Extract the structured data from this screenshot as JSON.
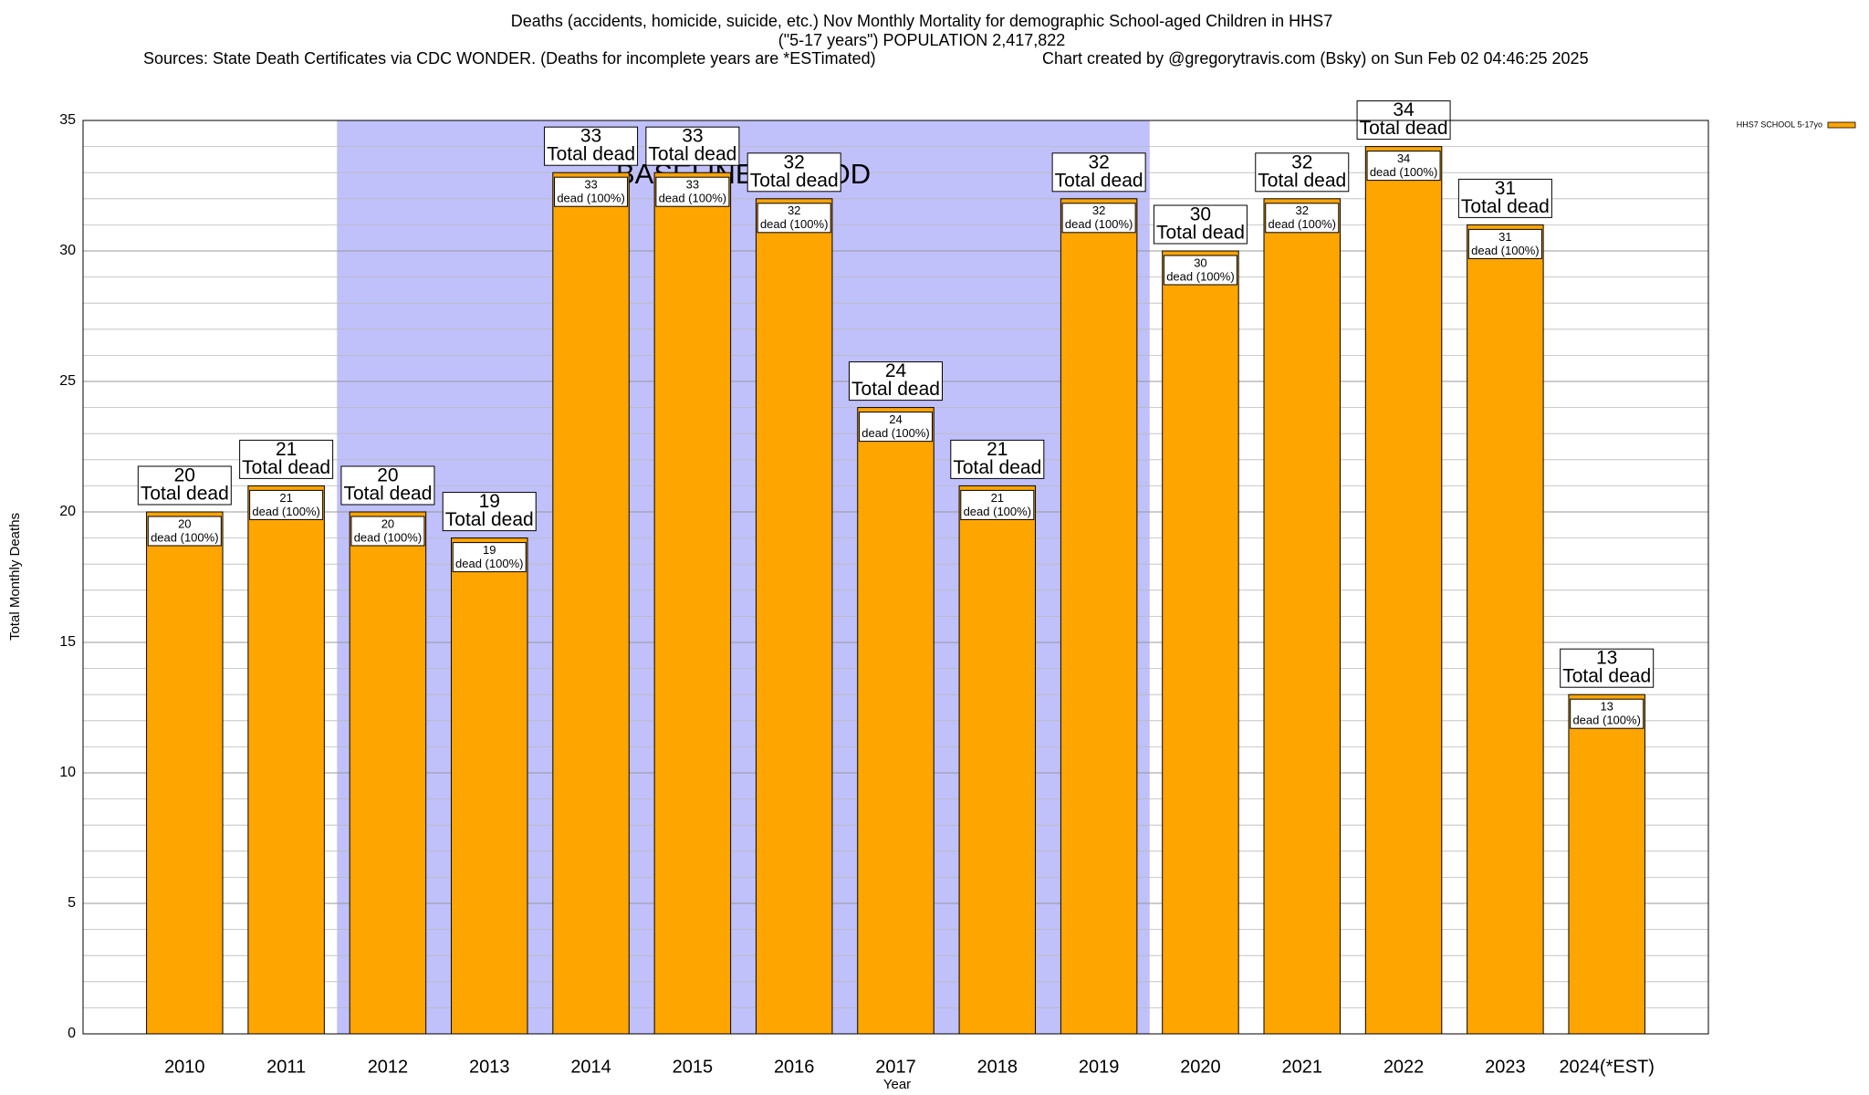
{
  "chart_data": {
    "type": "bar",
    "title": "Deaths (accidents, homicide, suicide, etc.) Nov Monthly Mortality for demographic School-aged Children in HHS7",
    "subtitle": "(\"5-17 years\") POPULATION 2,417,822",
    "source": "Sources: State Death Certificates via CDC WONDER. (Deaths for incomplete years are *ESTimated)",
    "credit": "Chart created by @gregorytravis.com (Bsky) on Sun Feb 02 04:46:25 2025",
    "x_label": "Year",
    "y_label": "Total Monthly Deaths",
    "categories": [
      "2010",
      "2011",
      "2012",
      "2013",
      "2014",
      "2015",
      "2016",
      "2017",
      "2018",
      "2019",
      "2020",
      "2021",
      "2022",
      "2023",
      "2024(*EST)"
    ],
    "series": [
      {
        "name": "HHS7 SCHOOL 5-17yo",
        "color": "#ffa500",
        "values": [
          20,
          21,
          20,
          19,
          33,
          33,
          32,
          24,
          21,
          32,
          30,
          32,
          34,
          31,
          13
        ]
      }
    ],
    "top_label_text": "Total dead",
    "inner_label_text": "dead (100%)",
    "baseline_period": {
      "label": "BASELINE PERIOD",
      "from": "2012",
      "to": "2019",
      "color": "#c0c0fb"
    },
    "ylim": [
      0,
      35
    ],
    "yticks": [
      0,
      5,
      10,
      15,
      20,
      25,
      30,
      35
    ],
    "minor_step": 1,
    "grid": true,
    "legend": "top-right"
  }
}
